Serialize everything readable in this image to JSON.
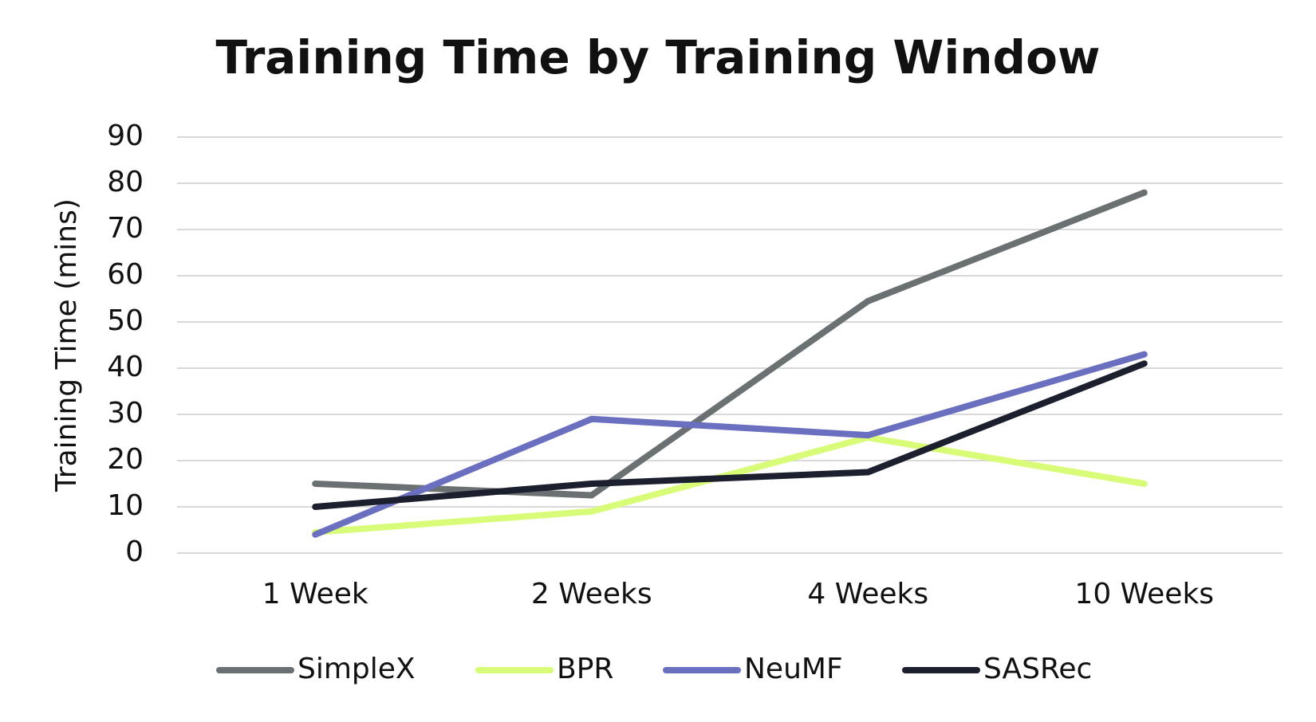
{
  "chart_data": {
    "type": "line",
    "title": "Training Time by Training Window",
    "y_label": "Training Time (mins)",
    "categories": [
      "1 Week",
      "2 Weeks",
      "4 Weeks",
      "10 Weeks"
    ],
    "series": [
      {
        "name": "SimpleX",
        "color": "#6b7073",
        "values": [
          15,
          12.5,
          54.5,
          78
        ]
      },
      {
        "name": "BPR",
        "color": "#d8fc78",
        "values": [
          4.5,
          9,
          25,
          15
        ]
      },
      {
        "name": "NeuMF",
        "color": "#6b6fbf",
        "values": [
          4,
          29,
          25.5,
          43
        ]
      },
      {
        "name": "SASRec",
        "color": "#1c1f2e",
        "values": [
          10,
          15,
          17.5,
          41
        ]
      }
    ],
    "ylim": [
      0,
      90
    ],
    "yticks": [
      0,
      10,
      20,
      30,
      40,
      50,
      60,
      70,
      80,
      90
    ],
    "grid": true,
    "legend": "bottom"
  }
}
